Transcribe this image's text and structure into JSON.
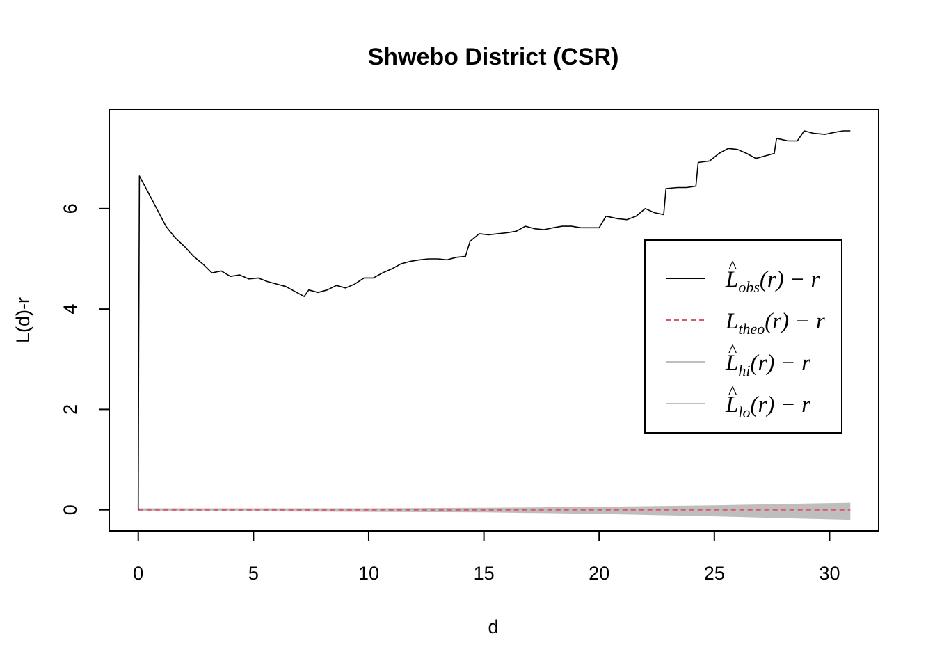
{
  "chart_data": {
    "type": "line",
    "title": "Shwebo District (CSR)",
    "xlabel": "d",
    "ylabel": "L(d)-r",
    "xlim": [
      -1.26,
      32.13
    ],
    "ylim": [
      -0.42,
      7.98
    ],
    "xticks": [
      0,
      5,
      10,
      15,
      20,
      25,
      30
    ],
    "yticks": [
      0,
      2,
      4,
      6
    ],
    "grid": false,
    "legend_position": "right",
    "colors": {
      "obs": "#000000",
      "theo": "#DF536B",
      "envelope": "#BEBEBE",
      "frame": "#000000"
    },
    "series": [
      {
        "key": "obs",
        "style": "solid",
        "points": [
          [
            0,
            0
          ],
          [
            0.02,
            3.3
          ],
          [
            0.05,
            6.65
          ],
          [
            0.4,
            6.35
          ],
          [
            0.8,
            6.0
          ],
          [
            1.2,
            5.65
          ],
          [
            1.6,
            5.42
          ],
          [
            2,
            5.25
          ],
          [
            2.4,
            5.05
          ],
          [
            2.8,
            4.9
          ],
          [
            3.2,
            4.72
          ],
          [
            3.6,
            4.76
          ],
          [
            4,
            4.65
          ],
          [
            4.4,
            4.68
          ],
          [
            4.8,
            4.6
          ],
          [
            5.2,
            4.62
          ],
          [
            5.6,
            4.55
          ],
          [
            6,
            4.5
          ],
          [
            6.4,
            4.45
          ],
          [
            6.8,
            4.35
          ],
          [
            7.2,
            4.25
          ],
          [
            7.4,
            4.38
          ],
          [
            7.8,
            4.33
          ],
          [
            8.2,
            4.38
          ],
          [
            8.6,
            4.47
          ],
          [
            9,
            4.42
          ],
          [
            9.4,
            4.5
          ],
          [
            9.8,
            4.62
          ],
          [
            10.2,
            4.62
          ],
          [
            10.6,
            4.72
          ],
          [
            11,
            4.8
          ],
          [
            11.4,
            4.9
          ],
          [
            11.8,
            4.95
          ],
          [
            12.2,
            4.98
          ],
          [
            12.6,
            5.0
          ],
          [
            13,
            5.0
          ],
          [
            13.4,
            4.98
          ],
          [
            13.8,
            5.03
          ],
          [
            14.2,
            5.05
          ],
          [
            14.4,
            5.35
          ],
          [
            14.8,
            5.5
          ],
          [
            15.2,
            5.48
          ],
          [
            15.6,
            5.5
          ],
          [
            16,
            5.52
          ],
          [
            16.4,
            5.55
          ],
          [
            16.8,
            5.65
          ],
          [
            17.2,
            5.6
          ],
          [
            17.6,
            5.58
          ],
          [
            18,
            5.62
          ],
          [
            18.4,
            5.65
          ],
          [
            18.8,
            5.65
          ],
          [
            19.2,
            5.62
          ],
          [
            19.6,
            5.62
          ],
          [
            20,
            5.62
          ],
          [
            20.3,
            5.85
          ],
          [
            20.8,
            5.8
          ],
          [
            21.2,
            5.78
          ],
          [
            21.6,
            5.85
          ],
          [
            22,
            6.0
          ],
          [
            22.4,
            5.92
          ],
          [
            22.8,
            5.88
          ],
          [
            22.9,
            6.4
          ],
          [
            23.4,
            6.42
          ],
          [
            23.8,
            6.42
          ],
          [
            24.2,
            6.45
          ],
          [
            24.3,
            6.92
          ],
          [
            24.8,
            6.95
          ],
          [
            25.2,
            7.1
          ],
          [
            25.6,
            7.2
          ],
          [
            26,
            7.18
          ],
          [
            26.4,
            7.1
          ],
          [
            26.8,
            7.0
          ],
          [
            27.2,
            7.05
          ],
          [
            27.6,
            7.1
          ],
          [
            27.7,
            7.4
          ],
          [
            28.2,
            7.35
          ],
          [
            28.6,
            7.35
          ],
          [
            28.9,
            7.55
          ],
          [
            29.3,
            7.5
          ],
          [
            29.8,
            7.48
          ],
          [
            30.2,
            7.52
          ],
          [
            30.6,
            7.55
          ],
          [
            30.9,
            7.55
          ]
        ]
      },
      {
        "key": "theo",
        "style": "dashed",
        "points": [
          [
            0,
            0
          ],
          [
            30.9,
            0
          ]
        ]
      },
      {
        "key": "envelope",
        "style": "band",
        "x": [
          0,
          5,
          10,
          15,
          20,
          25,
          30.9
        ],
        "hi": [
          0.03,
          0.03,
          0.03,
          0.04,
          0.06,
          0.09,
          0.14
        ],
        "lo": [
          -0.03,
          -0.03,
          -0.04,
          -0.05,
          -0.08,
          -0.13,
          -0.2
        ]
      }
    ],
    "legend": [
      {
        "key": "obs",
        "main": "L",
        "hat": "^",
        "sub": "obs",
        "tail": "(r) − r"
      },
      {
        "key": "theo",
        "main": "L",
        "hat": "",
        "sub": "theo",
        "tail": "(r) − r"
      },
      {
        "key": "hi",
        "main": "L",
        "hat": "^",
        "sub": "hi",
        "tail": "(r) − r"
      },
      {
        "key": "lo",
        "main": "L",
        "hat": "^",
        "sub": "lo",
        "tail": "(r) − r"
      }
    ]
  }
}
